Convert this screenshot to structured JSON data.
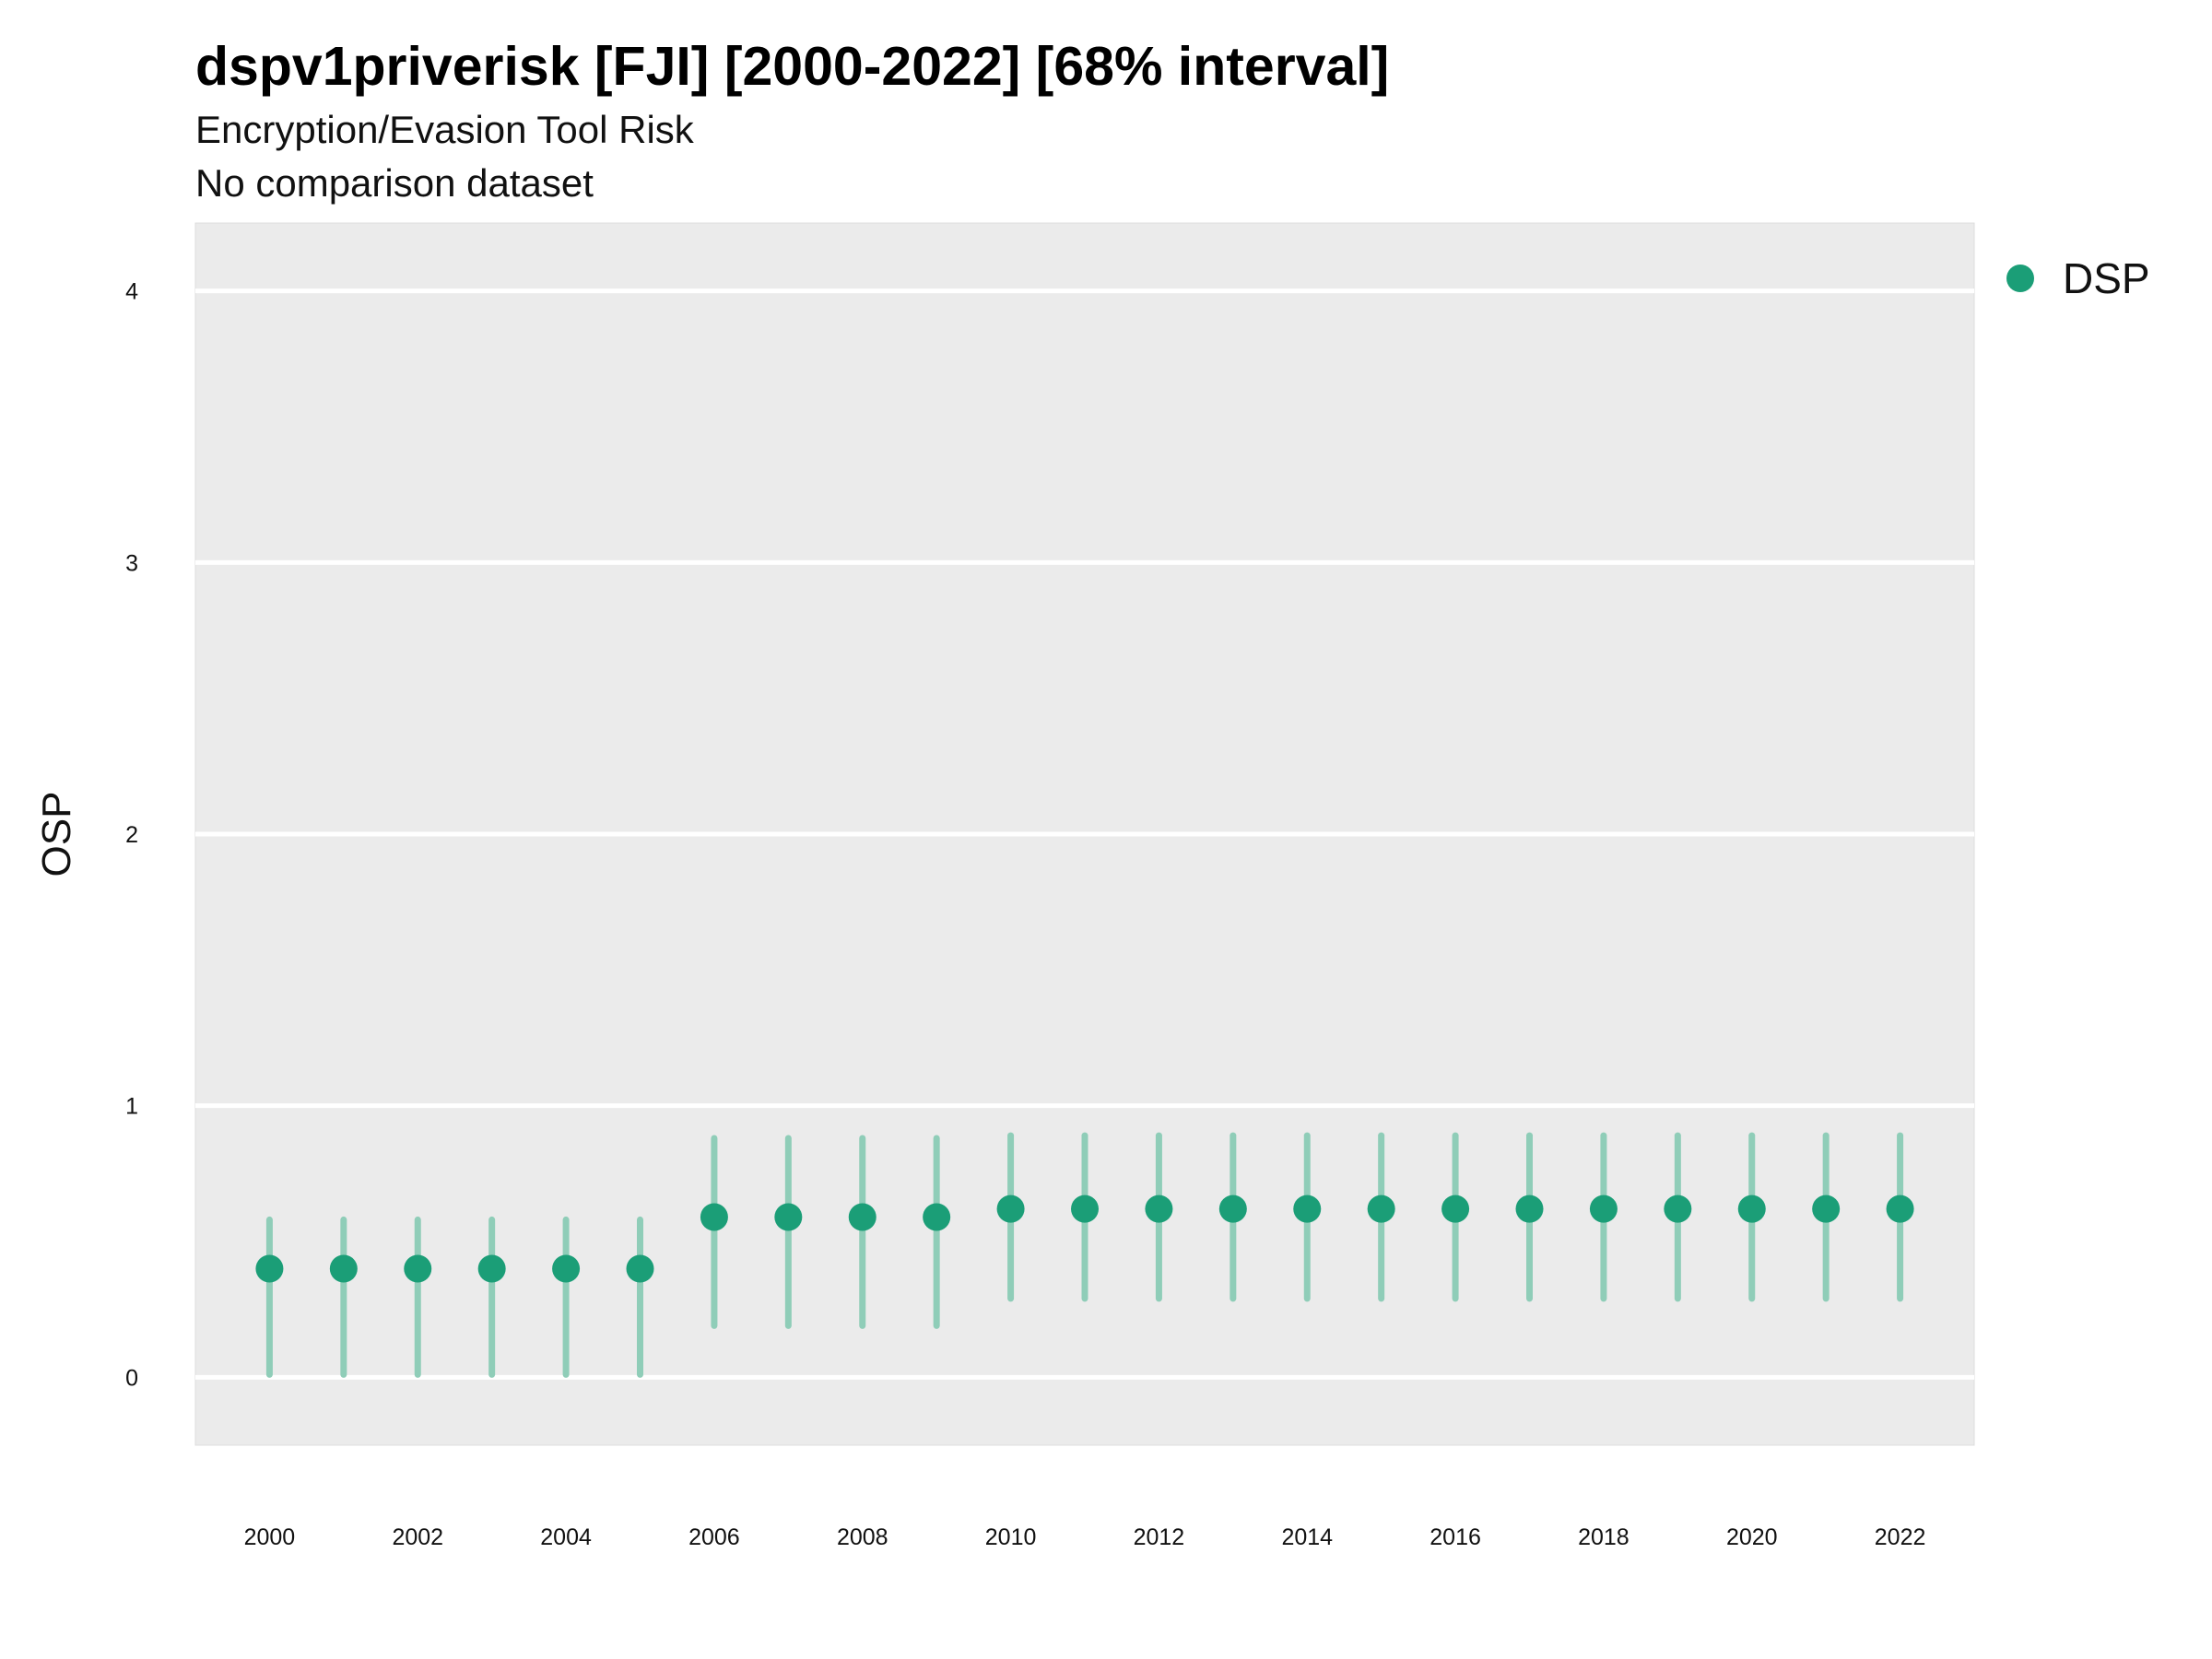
{
  "chart_data": {
    "type": "scatter",
    "title": "dspv1priverisk [FJI] [2000-2022] [68% interval]",
    "subtitle": "Encryption/Evasion Tool Risk",
    "caption": "No comparison dataset",
    "xlabel": "",
    "ylabel": "OSP",
    "xlim": [
      1999,
      2023
    ],
    "ylim": [
      -0.25,
      4.25
    ],
    "x_ticks": [
      2000,
      2002,
      2004,
      2006,
      2008,
      2010,
      2012,
      2014,
      2016,
      2018,
      2020,
      2022
    ],
    "y_ticks": [
      0,
      1,
      2,
      3,
      4
    ],
    "grid": true,
    "legend_position": "right-top",
    "colors": {
      "point": "#1b9e77",
      "interval": "#8fcdb8",
      "panel": "#ebebeb",
      "grid": "#ffffff"
    },
    "series": [
      {
        "name": "DSP",
        "x": [
          2000,
          2001,
          2002,
          2003,
          2004,
          2005,
          2006,
          2007,
          2008,
          2009,
          2010,
          2011,
          2012,
          2013,
          2014,
          2015,
          2016,
          2017,
          2018,
          2019,
          2020,
          2021,
          2022
        ],
        "y": [
          0.4,
          0.4,
          0.4,
          0.4,
          0.4,
          0.4,
          0.59,
          0.59,
          0.59,
          0.59,
          0.62,
          0.62,
          0.62,
          0.62,
          0.62,
          0.62,
          0.62,
          0.62,
          0.62,
          0.62,
          0.62,
          0.62,
          0.62
        ],
        "lower": [
          0.01,
          0.01,
          0.01,
          0.01,
          0.01,
          0.01,
          0.19,
          0.19,
          0.19,
          0.19,
          0.29,
          0.29,
          0.29,
          0.29,
          0.29,
          0.29,
          0.29,
          0.29,
          0.29,
          0.29,
          0.29,
          0.29,
          0.29
        ],
        "upper": [
          0.58,
          0.58,
          0.58,
          0.58,
          0.58,
          0.58,
          0.88,
          0.88,
          0.88,
          0.88,
          0.89,
          0.89,
          0.89,
          0.89,
          0.89,
          0.89,
          0.89,
          0.89,
          0.89,
          0.89,
          0.89,
          0.89,
          0.89
        ]
      }
    ]
  }
}
